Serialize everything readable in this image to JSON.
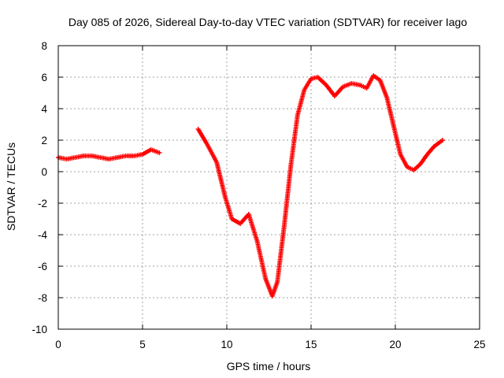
{
  "chart_data": {
    "type": "scatter",
    "title": "Day 085 of 2026, Sidereal Day-to-day VTEC variation (SDTVAR) for receiver Iago",
    "xlabel": "GPS time / hours",
    "ylabel": "SDTVAR / TECUs",
    "xlim": [
      0,
      25
    ],
    "ylim": [
      -10,
      8
    ],
    "xticks": [
      0,
      5,
      10,
      15,
      20,
      25
    ],
    "yticks": [
      -10,
      -8,
      -6,
      -4,
      -2,
      0,
      2,
      4,
      6,
      8
    ],
    "grid": true,
    "marker": "+",
    "series": [
      {
        "name": "SDTVAR",
        "color": "#ff0000",
        "segments": [
          {
            "x": [
              0.0,
              0.5,
              1.0,
              1.5,
              2.0,
              2.5,
              3.0,
              3.5,
              4.0,
              4.5,
              5.0,
              5.5,
              6.0
            ],
            "y": [
              0.9,
              0.8,
              0.9,
              1.0,
              1.0,
              0.9,
              0.8,
              0.9,
              1.0,
              1.0,
              1.1,
              1.4,
              1.2
            ]
          },
          {
            "x": [
              8.3,
              8.8,
              9.4,
              9.9,
              10.3,
              10.8,
              11.3,
              11.8,
              12.3,
              12.7,
              13.0,
              13.4,
              13.8,
              14.2,
              14.6,
              15.0,
              15.4,
              15.9,
              16.4,
              16.9,
              17.4,
              17.9,
              18.3,
              18.7,
              19.1,
              19.5,
              19.9,
              20.3,
              20.7,
              21.1,
              21.5,
              21.9,
              22.3,
              22.8
            ],
            "y": [
              2.7,
              1.8,
              0.6,
              -1.6,
              -3.0,
              -3.3,
              -2.7,
              -4.4,
              -6.8,
              -7.9,
              -7.0,
              -3.5,
              0.4,
              3.6,
              5.2,
              5.9,
              6.0,
              5.5,
              4.8,
              5.4,
              5.6,
              5.5,
              5.3,
              6.1,
              5.8,
              4.7,
              2.9,
              1.1,
              0.3,
              0.1,
              0.5,
              1.1,
              1.6,
              2.0
            ]
          }
        ]
      }
    ]
  }
}
